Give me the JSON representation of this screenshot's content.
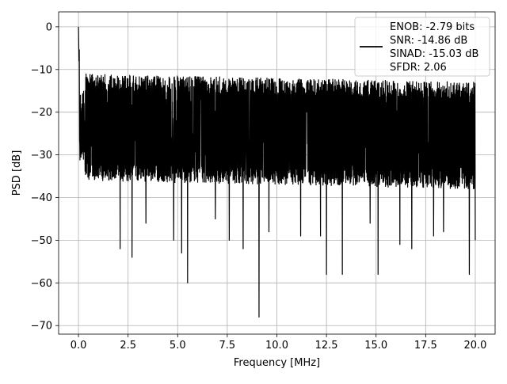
{
  "chart_data": {
    "type": "line",
    "title": "",
    "xlabel": "Frequency [MHz]",
    "ylabel": "PSD [dB]",
    "xlim": [
      -1,
      21
    ],
    "ylim": [
      -72,
      3.5
    ],
    "xticks": [
      0.0,
      2.5,
      5.0,
      7.5,
      10.0,
      12.5,
      15.0,
      17.5,
      20.0
    ],
    "xtick_labels": [
      "0.0",
      "2.5",
      "5.0",
      "7.5",
      "10.0",
      "12.5",
      "15.0",
      "17.5",
      "20.0"
    ],
    "yticks": [
      0,
      -10,
      -20,
      -30,
      -40,
      -50,
      -60,
      -70
    ],
    "ytick_labels": [
      "0",
      "−10",
      "−20",
      "−30",
      "−40",
      "−50",
      "−60",
      "−70"
    ],
    "grid": true,
    "legend_position": "top-right",
    "line_color": "#000000",
    "series": [
      {
        "name": "ENOB: -2.79 bits\nSNR: -14.86 dB\nSINAD: -15.03 dB\nSFDR: 2.06",
        "x_range": [
          0,
          20
        ],
        "peak_x": 0.0,
        "peak_y": 0,
        "upper_envelope_y": [
          -14,
          -16
        ],
        "lower_envelope_y": [
          -32,
          -34
        ],
        "dips": [
          {
            "x": 2.1,
            "y": -52
          },
          {
            "x": 2.7,
            "y": -54
          },
          {
            "x": 3.4,
            "y": -46
          },
          {
            "x": 4.8,
            "y": -50
          },
          {
            "x": 5.2,
            "y": -53
          },
          {
            "x": 5.5,
            "y": -60
          },
          {
            "x": 6.9,
            "y": -45
          },
          {
            "x": 7.6,
            "y": -50
          },
          {
            "x": 8.3,
            "y": -52
          },
          {
            "x": 9.1,
            "y": -68
          },
          {
            "x": 9.6,
            "y": -48
          },
          {
            "x": 11.2,
            "y": -49
          },
          {
            "x": 12.2,
            "y": -49
          },
          {
            "x": 12.5,
            "y": -58
          },
          {
            "x": 13.3,
            "y": -58
          },
          {
            "x": 14.7,
            "y": -46
          },
          {
            "x": 15.1,
            "y": -58
          },
          {
            "x": 16.2,
            "y": -51
          },
          {
            "x": 16.8,
            "y": -52
          },
          {
            "x": 17.9,
            "y": -49
          },
          {
            "x": 18.4,
            "y": -48
          },
          {
            "x": 19.7,
            "y": -58
          },
          {
            "x": 20.0,
            "y": -50
          }
        ]
      }
    ],
    "legend_lines": [
      "ENOB: -2.79 bits",
      "SNR: -14.86 dB",
      "SINAD: -15.03 dB",
      "SFDR: 2.06"
    ]
  }
}
